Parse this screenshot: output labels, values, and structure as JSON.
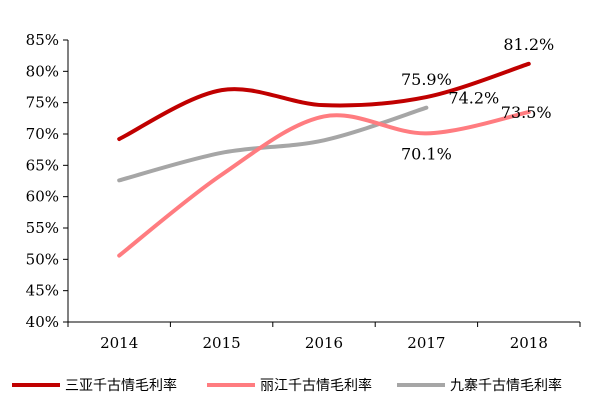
{
  "chart_data": {
    "type": "line",
    "title": "",
    "xlabel": "",
    "ylabel": "",
    "categories": [
      "2014",
      "2015",
      "2016",
      "2017",
      "2018"
    ],
    "ylim": [
      40,
      85
    ],
    "ytick_labels": [
      "85%",
      "80%",
      "75%",
      "70%",
      "65%",
      "60%",
      "55%",
      "50%",
      "45%",
      "40%"
    ],
    "grid": false,
    "legend_position": "bottom",
    "series": [
      {
        "name": "三亚千古情毛利率",
        "color": "#c00000",
        "values": [
          69.2,
          77.0,
          74.6,
          75.9,
          81.2
        ],
        "labels": {
          "3": "75.9%",
          "4": "81.2%"
        }
      },
      {
        "name": "丽江千古情毛利率",
        "color": "#ff7c80",
        "values": [
          50.6,
          63.5,
          72.8,
          70.1,
          73.5
        ],
        "labels": {
          "3": "70.1%",
          "4": "73.5%"
        }
      },
      {
        "name": "九寨千古情毛利率",
        "color": "#a6a6a6",
        "values": [
          62.6,
          67.0,
          69.0,
          74.2,
          null
        ],
        "labels": {
          "3": "74.2%"
        }
      }
    ]
  }
}
